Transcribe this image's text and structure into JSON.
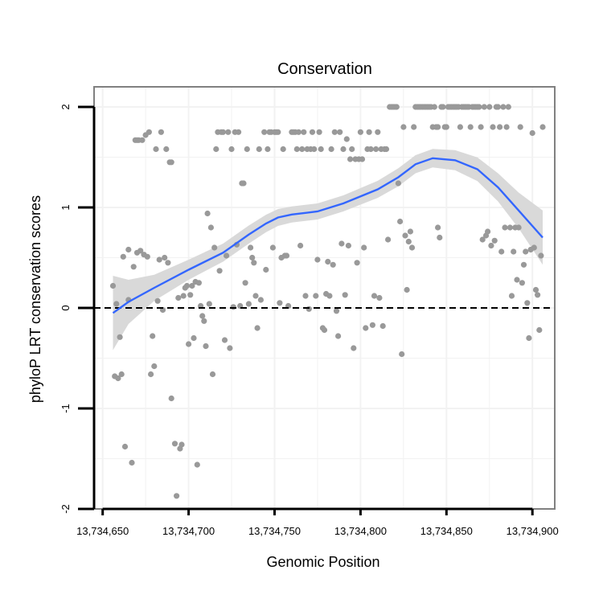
{
  "chart_data": {
    "type": "scatter",
    "title": "Conservation",
    "xlabel": "Genomic Position",
    "ylabel": "phyloP LRT conservation scores",
    "xlim": [
      13734645,
      13734913
    ],
    "ylim": [
      -2.0,
      2.2
    ],
    "x_ticks": [
      13734650,
      13734700,
      13734750,
      13734800,
      13734850,
      13734900
    ],
    "x_tick_labels": [
      "13,734,650",
      "13,734,700",
      "13,734,750",
      "13,734,800",
      "13,734,850",
      "13,734,900"
    ],
    "y_ticks": [
      -2,
      -1,
      0,
      1,
      2
    ],
    "y_tick_labels": [
      "-2",
      "-1",
      "0",
      "1",
      "2"
    ],
    "reference_line": {
      "y": 0,
      "style": "dashed"
    },
    "colors": {
      "points": "#999999",
      "smooth": "#3366ff",
      "ribbon": "#d9d9d9",
      "panel_border": "#808080",
      "grid": "#f2f2f2"
    },
    "points": [
      [
        13734656,
        0.22
      ],
      [
        13734657,
        -0.68
      ],
      [
        13734658,
        0.04
      ],
      [
        13734659,
        -0.7
      ],
      [
        13734660,
        -0.29
      ],
      [
        13734661,
        -0.66
      ],
      [
        13734662,
        0.51
      ],
      [
        13734663,
        -1.38
      ],
      [
        13734665,
        0.58
      ],
      [
        13734665,
        0.08
      ],
      [
        13734667,
        -1.54
      ],
      [
        13734668,
        0.41
      ],
      [
        13734669,
        1.67
      ],
      [
        13734670,
        1.67
      ],
      [
        13734670,
        0.55
      ],
      [
        13734671,
        1.67
      ],
      [
        13734672,
        0.57
      ],
      [
        13734673,
        1.67
      ],
      [
        13734674,
        0.53
      ],
      [
        13734675,
        1.72
      ],
      [
        13734676,
        0.51
      ],
      [
        13734677,
        1.75
      ],
      [
        13734678,
        -0.66
      ],
      [
        13734679,
        -0.28
      ],
      [
        13734680,
        -0.58
      ],
      [
        13734681,
        1.58
      ],
      [
        13734682,
        0.07
      ],
      [
        13734683,
        0.48
      ],
      [
        13734684,
        1.75
      ],
      [
        13734685,
        -0.02
      ],
      [
        13734686,
        0.5
      ],
      [
        13734687,
        1.58
      ],
      [
        13734688,
        0.45
      ],
      [
        13734689,
        1.45
      ],
      [
        13734690,
        -0.9
      ],
      [
        13734690,
        1.45
      ],
      [
        13734692,
        -1.35
      ],
      [
        13734693,
        -1.87
      ],
      [
        13734694,
        0.1
      ],
      [
        13734695,
        -1.4
      ],
      [
        13734696,
        -1.36
      ],
      [
        13734697,
        0.12
      ],
      [
        13734698,
        0.2
      ],
      [
        13734699,
        0.22
      ],
      [
        13734700,
        -0.36
      ],
      [
        13734701,
        0.13
      ],
      [
        13734702,
        0.22
      ],
      [
        13734703,
        -0.3
      ],
      [
        13734704,
        0.26
      ],
      [
        13734705,
        -1.56
      ],
      [
        13734706,
        0.25
      ],
      [
        13734707,
        0.02
      ],
      [
        13734708,
        -0.08
      ],
      [
        13734709,
        -0.13
      ],
      [
        13734710,
        -0.38
      ],
      [
        13734711,
        0.94
      ],
      [
        13734712,
        0.04
      ],
      [
        13734713,
        0.8
      ],
      [
        13734714,
        -0.66
      ],
      [
        13734715,
        0.6
      ],
      [
        13734716,
        1.58
      ],
      [
        13734717,
        1.75
      ],
      [
        13734718,
        0.37
      ],
      [
        13734719,
        1.75
      ],
      [
        13734720,
        1.75
      ],
      [
        13734721,
        -0.32
      ],
      [
        13734722,
        0.52
      ],
      [
        13734723,
        1.75
      ],
      [
        13734724,
        -0.4
      ],
      [
        13734725,
        1.58
      ],
      [
        13734726,
        0.01
      ],
      [
        13734727,
        1.75
      ],
      [
        13734728,
        0.63
      ],
      [
        13734729,
        1.75
      ],
      [
        13734730,
        0.02
      ],
      [
        13734731,
        1.24
      ],
      [
        13734732,
        1.24
      ],
      [
        13734733,
        0.25
      ],
      [
        13734734,
        1.58
      ],
      [
        13734735,
        0.04
      ],
      [
        13734736,
        0.6
      ],
      [
        13734737,
        0.5
      ],
      [
        13734738,
        0.45
      ],
      [
        13734739,
        0.12
      ],
      [
        13734740,
        -0.2
      ],
      [
        13734741,
        1.58
      ],
      [
        13734742,
        0.08
      ],
      [
        13734744,
        1.75
      ],
      [
        13734745,
        0.38
      ],
      [
        13734746,
        1.58
      ],
      [
        13734747,
        1.75
      ],
      [
        13734748,
        1.75
      ],
      [
        13734749,
        0.6
      ],
      [
        13734750,
        1.75
      ],
      [
        13734751,
        1.75
      ],
      [
        13734752,
        1.75
      ],
      [
        13734753,
        0.05
      ],
      [
        13734754,
        0.5
      ],
      [
        13734755,
        1.58
      ],
      [
        13734756,
        0.52
      ],
      [
        13734757,
        0.52
      ],
      [
        13734758,
        0.02
      ],
      [
        13734760,
        1.75
      ],
      [
        13734761,
        1.75
      ],
      [
        13734762,
        1.75
      ],
      [
        13734763,
        1.58
      ],
      [
        13734764,
        1.75
      ],
      [
        13734765,
        0.62
      ],
      [
        13734766,
        1.58
      ],
      [
        13734767,
        1.75
      ],
      [
        13734768,
        0.12
      ],
      [
        13734769,
        1.58
      ],
      [
        13734770,
        -0.01
      ],
      [
        13734771,
        1.58
      ],
      [
        13734772,
        1.75
      ],
      [
        13734773,
        1.58
      ],
      [
        13734774,
        0.12
      ],
      [
        13734775,
        0.48
      ],
      [
        13734776,
        1.75
      ],
      [
        13734777,
        1.58
      ],
      [
        13734778,
        -0.2
      ],
      [
        13734779,
        -0.22
      ],
      [
        13734780,
        0.14
      ],
      [
        13734781,
        0.46
      ],
      [
        13734782,
        0.12
      ],
      [
        13734783,
        1.58
      ],
      [
        13734784,
        0.43
      ],
      [
        13734785,
        1.75
      ],
      [
        13734786,
        -0.03
      ],
      [
        13734787,
        -0.28
      ],
      [
        13734788,
        1.75
      ],
      [
        13734789,
        0.64
      ],
      [
        13734790,
        1.58
      ],
      [
        13734791,
        0.13
      ],
      [
        13734792,
        1.68
      ],
      [
        13734793,
        0.62
      ],
      [
        13734794,
        1.48
      ],
      [
        13734795,
        1.58
      ],
      [
        13734796,
        -0.4
      ],
      [
        13734797,
        1.48
      ],
      [
        13734798,
        0.45
      ],
      [
        13734799,
        1.48
      ],
      [
        13734800,
        1.75
      ],
      [
        13734801,
        1.48
      ],
      [
        13734802,
        0.6
      ],
      [
        13734803,
        -0.2
      ],
      [
        13734804,
        1.58
      ],
      [
        13734805,
        1.75
      ],
      [
        13734806,
        1.58
      ],
      [
        13734807,
        -0.17
      ],
      [
        13734808,
        0.12
      ],
      [
        13734809,
        1.58
      ],
      [
        13734810,
        1.75
      ],
      [
        13734811,
        0.1
      ],
      [
        13734812,
        1.58
      ],
      [
        13734813,
        -0.18
      ],
      [
        13734814,
        1.58
      ],
      [
        13734815,
        1.58
      ],
      [
        13734816,
        0.68
      ],
      [
        13734817,
        2.0
      ],
      [
        13734818,
        2.0
      ],
      [
        13734819,
        2.0
      ],
      [
        13734820,
        2.0
      ],
      [
        13734821,
        2.0
      ],
      [
        13734822,
        1.24
      ],
      [
        13734823,
        0.86
      ],
      [
        13734824,
        -0.46
      ],
      [
        13734825,
        1.8
      ],
      [
        13734826,
        0.72
      ],
      [
        13734827,
        0.18
      ],
      [
        13734828,
        0.66
      ],
      [
        13734829,
        0.76
      ],
      [
        13734830,
        0.6
      ],
      [
        13734831,
        1.8
      ],
      [
        13734832,
        2.0
      ],
      [
        13734833,
        2.0
      ],
      [
        13734834,
        2.0
      ],
      [
        13734835,
        2.0
      ],
      [
        13734836,
        2.0
      ],
      [
        13734837,
        2.0
      ],
      [
        13734838,
        2.0
      ],
      [
        13734839,
        2.0
      ],
      [
        13734840,
        2.0
      ],
      [
        13734841,
        2.0
      ],
      [
        13734842,
        1.8
      ],
      [
        13734843,
        2.0
      ],
      [
        13734844,
        1.8
      ],
      [
        13734845,
        1.8
      ],
      [
        13734845,
        0.8
      ],
      [
        13734846,
        0.7
      ],
      [
        13734847,
        2.0
      ],
      [
        13734848,
        2.0
      ],
      [
        13734849,
        1.8
      ],
      [
        13734850,
        1.8
      ],
      [
        13734851,
        2.0
      ],
      [
        13734852,
        2.0
      ],
      [
        13734853,
        2.0
      ],
      [
        13734854,
        2.0
      ],
      [
        13734855,
        2.0
      ],
      [
        13734856,
        2.0
      ],
      [
        13734857,
        2.0
      ],
      [
        13734858,
        1.8
      ],
      [
        13734859,
        2.0
      ],
      [
        13734860,
        2.0
      ],
      [
        13734861,
        2.0
      ],
      [
        13734862,
        2.0
      ],
      [
        13734863,
        2.0
      ],
      [
        13734864,
        1.8
      ],
      [
        13734865,
        2.0
      ],
      [
        13734866,
        2.0
      ],
      [
        13734867,
        2.0
      ],
      [
        13734868,
        2.0
      ],
      [
        13734869,
        2.0
      ],
      [
        13734870,
        1.8
      ],
      [
        13734871,
        0.68
      ],
      [
        13734872,
        2.0
      ],
      [
        13734873,
        0.72
      ],
      [
        13734874,
        0.76
      ],
      [
        13734875,
        2.0
      ],
      [
        13734876,
        0.62
      ],
      [
        13734877,
        1.8
      ],
      [
        13734878,
        0.67
      ],
      [
        13734879,
        2.0
      ],
      [
        13734880,
        2.0
      ],
      [
        13734881,
        1.8
      ],
      [
        13734882,
        0.56
      ],
      [
        13734883,
        2.0
      ],
      [
        13734884,
        0.8
      ],
      [
        13734885,
        1.8
      ],
      [
        13734886,
        2.0
      ],
      [
        13734887,
        0.8
      ],
      [
        13734888,
        0.12
      ],
      [
        13734889,
        0.56
      ],
      [
        13734890,
        0.8
      ],
      [
        13734891,
        0.28
      ],
      [
        13734892,
        0.8
      ],
      [
        13734893,
        1.8
      ],
      [
        13734894,
        0.25
      ],
      [
        13734895,
        0.43
      ],
      [
        13734896,
        0.56
      ],
      [
        13734897,
        0.05
      ],
      [
        13734898,
        -0.3
      ],
      [
        13734899,
        0.58
      ],
      [
        13734900,
        1.74
      ],
      [
        13734901,
        0.6
      ],
      [
        13734902,
        0.18
      ],
      [
        13734903,
        0.13
      ],
      [
        13734904,
        -0.22
      ],
      [
        13734905,
        0.52
      ],
      [
        13734906,
        1.8
      ]
    ],
    "smooth": [
      [
        13734656,
        -0.05
      ],
      [
        13734665,
        0.06
      ],
      [
        13734680,
        0.2
      ],
      [
        13734700,
        0.38
      ],
      [
        13734720,
        0.55
      ],
      [
        13734735,
        0.73
      ],
      [
        13734745,
        0.84
      ],
      [
        13734752,
        0.9
      ],
      [
        13734760,
        0.93
      ],
      [
        13734775,
        0.96
      ],
      [
        13734790,
        1.04
      ],
      [
        13734810,
        1.18
      ],
      [
        13734822,
        1.3
      ],
      [
        13734832,
        1.43
      ],
      [
        13734842,
        1.49
      ],
      [
        13734855,
        1.47
      ],
      [
        13734868,
        1.38
      ],
      [
        13734880,
        1.2
      ],
      [
        13734892,
        0.97
      ],
      [
        13734906,
        0.7
      ]
    ],
    "ribbon_halfwidth": [
      [
        13734656,
        0.37
      ],
      [
        13734665,
        0.22
      ],
      [
        13734680,
        0.13
      ],
      [
        13734700,
        0.1
      ],
      [
        13734720,
        0.09
      ],
      [
        13734740,
        0.09
      ],
      [
        13734760,
        0.08
      ],
      [
        13734780,
        0.08
      ],
      [
        13734800,
        0.08
      ],
      [
        13734820,
        0.09
      ],
      [
        13734840,
        0.09
      ],
      [
        13734855,
        0.1
      ],
      [
        13734870,
        0.12
      ],
      [
        13734885,
        0.15
      ],
      [
        13734895,
        0.19
      ],
      [
        13734906,
        0.27
      ]
    ]
  }
}
